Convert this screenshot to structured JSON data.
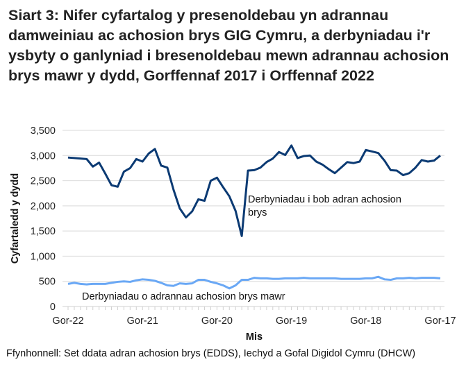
{
  "title": "Siart 3: Nifer cyfartalog y presenoldebau yn adrannau damweiniau ac achosion brys GIG Cymru, a derbyniadau i'r ysbyty o ganlyniad i bresenoldebau mewn adrannau achosion brys mawr y dydd, Gorffennaf 2017 i Orffennaf 2022",
  "source": "Ffynhonnell: Set ddata adran achosion brys (EDDS), Iechyd a Gofal Digidol Cymru (DHCW)",
  "chart_data": {
    "type": "line",
    "xlabel": "Mis",
    "ylabel": "Cyfartaledd y dydd",
    "ylim": [
      0,
      3500
    ],
    "yticks": [
      "0",
      "500",
      "1,000",
      "1,500",
      "2,000",
      "2,500",
      "3,000",
      "3,500"
    ],
    "x_order": "reversed: Gorffennaf 2022 (left) to Gorffennaf 2017 (right), monthly",
    "xtick_labels": [
      "Gor-22",
      "Gor-21",
      "Gor-20",
      "Gor-19",
      "Gor-18",
      "Gor-17"
    ],
    "grid": true,
    "series": [
      {
        "name": "Derbyniadau i bob adran achosion brys",
        "color": "#0b3a73",
        "values": [
          2960,
          2950,
          2940,
          2930,
          2780,
          2860,
          2640,
          2410,
          2380,
          2680,
          2750,
          2930,
          2880,
          3040,
          3130,
          2800,
          2760,
          2320,
          1950,
          1770,
          1890,
          2130,
          2100,
          2500,
          2560,
          2370,
          2190,
          1900,
          1400,
          2700,
          2710,
          2760,
          2870,
          2940,
          3070,
          3010,
          3200,
          2950,
          2990,
          3000,
          2880,
          2820,
          2730,
          2650,
          2760,
          2870,
          2850,
          2880,
          3110,
          3080,
          3050,
          2900,
          2710,
          2700,
          2610,
          2650,
          2760,
          2910,
          2880,
          2900,
          3000
        ]
      },
      {
        "name": "Derbyniadau o adrannau achosion brys mawr",
        "color": "#6aa8f5",
        "values": [
          450,
          470,
          450,
          440,
          450,
          450,
          450,
          470,
          490,
          500,
          490,
          520,
          540,
          530,
          510,
          470,
          420,
          410,
          460,
          450,
          460,
          530,
          530,
          490,
          460,
          420,
          360,
          420,
          530,
          530,
          570,
          560,
          560,
          550,
          550,
          560,
          560,
          560,
          570,
          560,
          560,
          560,
          560,
          560,
          550,
          550,
          550,
          550,
          560,
          560,
          590,
          540,
          530,
          560,
          560,
          570,
          560,
          570,
          570,
          570,
          560
        ]
      }
    ]
  }
}
